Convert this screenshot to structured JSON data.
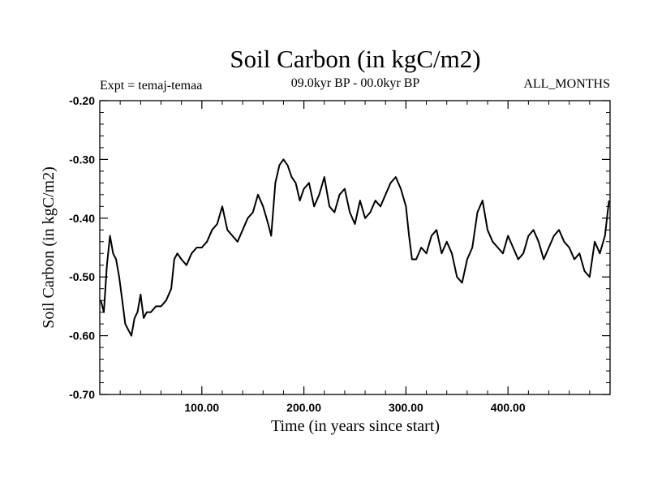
{
  "chart_data": {
    "type": "line",
    "title": "Soil Carbon (in kgC/m2)",
    "subtitle_left": "Expt = temaj-temaa",
    "subtitle_center": "09.0kyr BP - 00.0kyr BP",
    "subtitle_right": "ALL_MONTHS",
    "xlabel": "Time (in years since start)",
    "ylabel": "Soil Carbon (in kgC/m2)",
    "xlim": [
      0,
      500
    ],
    "ylim": [
      -0.7,
      -0.2
    ],
    "xticks": [
      100,
      200,
      300,
      400
    ],
    "xtick_labels": [
      "100.00",
      "200.00",
      "300.00",
      "400.00"
    ],
    "yticks": [
      -0.2,
      -0.3,
      -0.4,
      -0.5,
      -0.6,
      -0.7
    ],
    "ytick_labels": [
      "-0.20",
      "-0.30",
      "-0.40",
      "-0.50",
      "-0.60",
      "-0.70"
    ],
    "series": [
      {
        "name": "Soil Carbon",
        "color": "#000000",
        "x": [
          1,
          4,
          7,
          10,
          13,
          16,
          19,
          22,
          25,
          28,
          31,
          34,
          37,
          40,
          43,
          46,
          50,
          55,
          60,
          65,
          70,
          73,
          76,
          80,
          85,
          90,
          95,
          100,
          105,
          110,
          115,
          120,
          125,
          130,
          135,
          140,
          145,
          150,
          155,
          160,
          165,
          168,
          172,
          176,
          180,
          184,
          188,
          192,
          196,
          200,
          205,
          210,
          215,
          220,
          225,
          230,
          235,
          240,
          245,
          250,
          255,
          260,
          265,
          270,
          275,
          280,
          285,
          290,
          295,
          300,
          303,
          306,
          310,
          315,
          320,
          325,
          330,
          335,
          340,
          345,
          350,
          355,
          360,
          365,
          370,
          375,
          380,
          385,
          390,
          395,
          400,
          405,
          410,
          415,
          420,
          425,
          430,
          435,
          440,
          445,
          450,
          455,
          460,
          465,
          470,
          475,
          480,
          485,
          490,
          495,
          499
        ],
        "values": [
          -0.54,
          -0.56,
          -0.48,
          -0.43,
          -0.46,
          -0.47,
          -0.5,
          -0.54,
          -0.58,
          -0.59,
          -0.6,
          -0.57,
          -0.56,
          -0.53,
          -0.57,
          -0.56,
          -0.56,
          -0.55,
          -0.55,
          -0.54,
          -0.52,
          -0.47,
          -0.46,
          -0.47,
          -0.48,
          -0.46,
          -0.45,
          -0.45,
          -0.44,
          -0.42,
          -0.41,
          -0.38,
          -0.42,
          -0.43,
          -0.44,
          -0.42,
          -0.4,
          -0.39,
          -0.36,
          -0.38,
          -0.41,
          -0.43,
          -0.34,
          -0.31,
          -0.3,
          -0.31,
          -0.33,
          -0.34,
          -0.37,
          -0.35,
          -0.34,
          -0.38,
          -0.36,
          -0.33,
          -0.38,
          -0.39,
          -0.36,
          -0.35,
          -0.39,
          -0.41,
          -0.37,
          -0.4,
          -0.39,
          -0.37,
          -0.38,
          -0.36,
          -0.34,
          -0.33,
          -0.35,
          -0.38,
          -0.43,
          -0.47,
          -0.47,
          -0.45,
          -0.46,
          -0.43,
          -0.42,
          -0.46,
          -0.44,
          -0.46,
          -0.5,
          -0.51,
          -0.47,
          -0.45,
          -0.39,
          -0.37,
          -0.42,
          -0.44,
          -0.45,
          -0.46,
          -0.43,
          -0.45,
          -0.47,
          -0.46,
          -0.43,
          -0.42,
          -0.44,
          -0.47,
          -0.45,
          -0.43,
          -0.42,
          -0.44,
          -0.45,
          -0.47,
          -0.46,
          -0.49,
          -0.5,
          -0.44,
          -0.46,
          -0.43,
          -0.37
        ]
      }
    ]
  }
}
